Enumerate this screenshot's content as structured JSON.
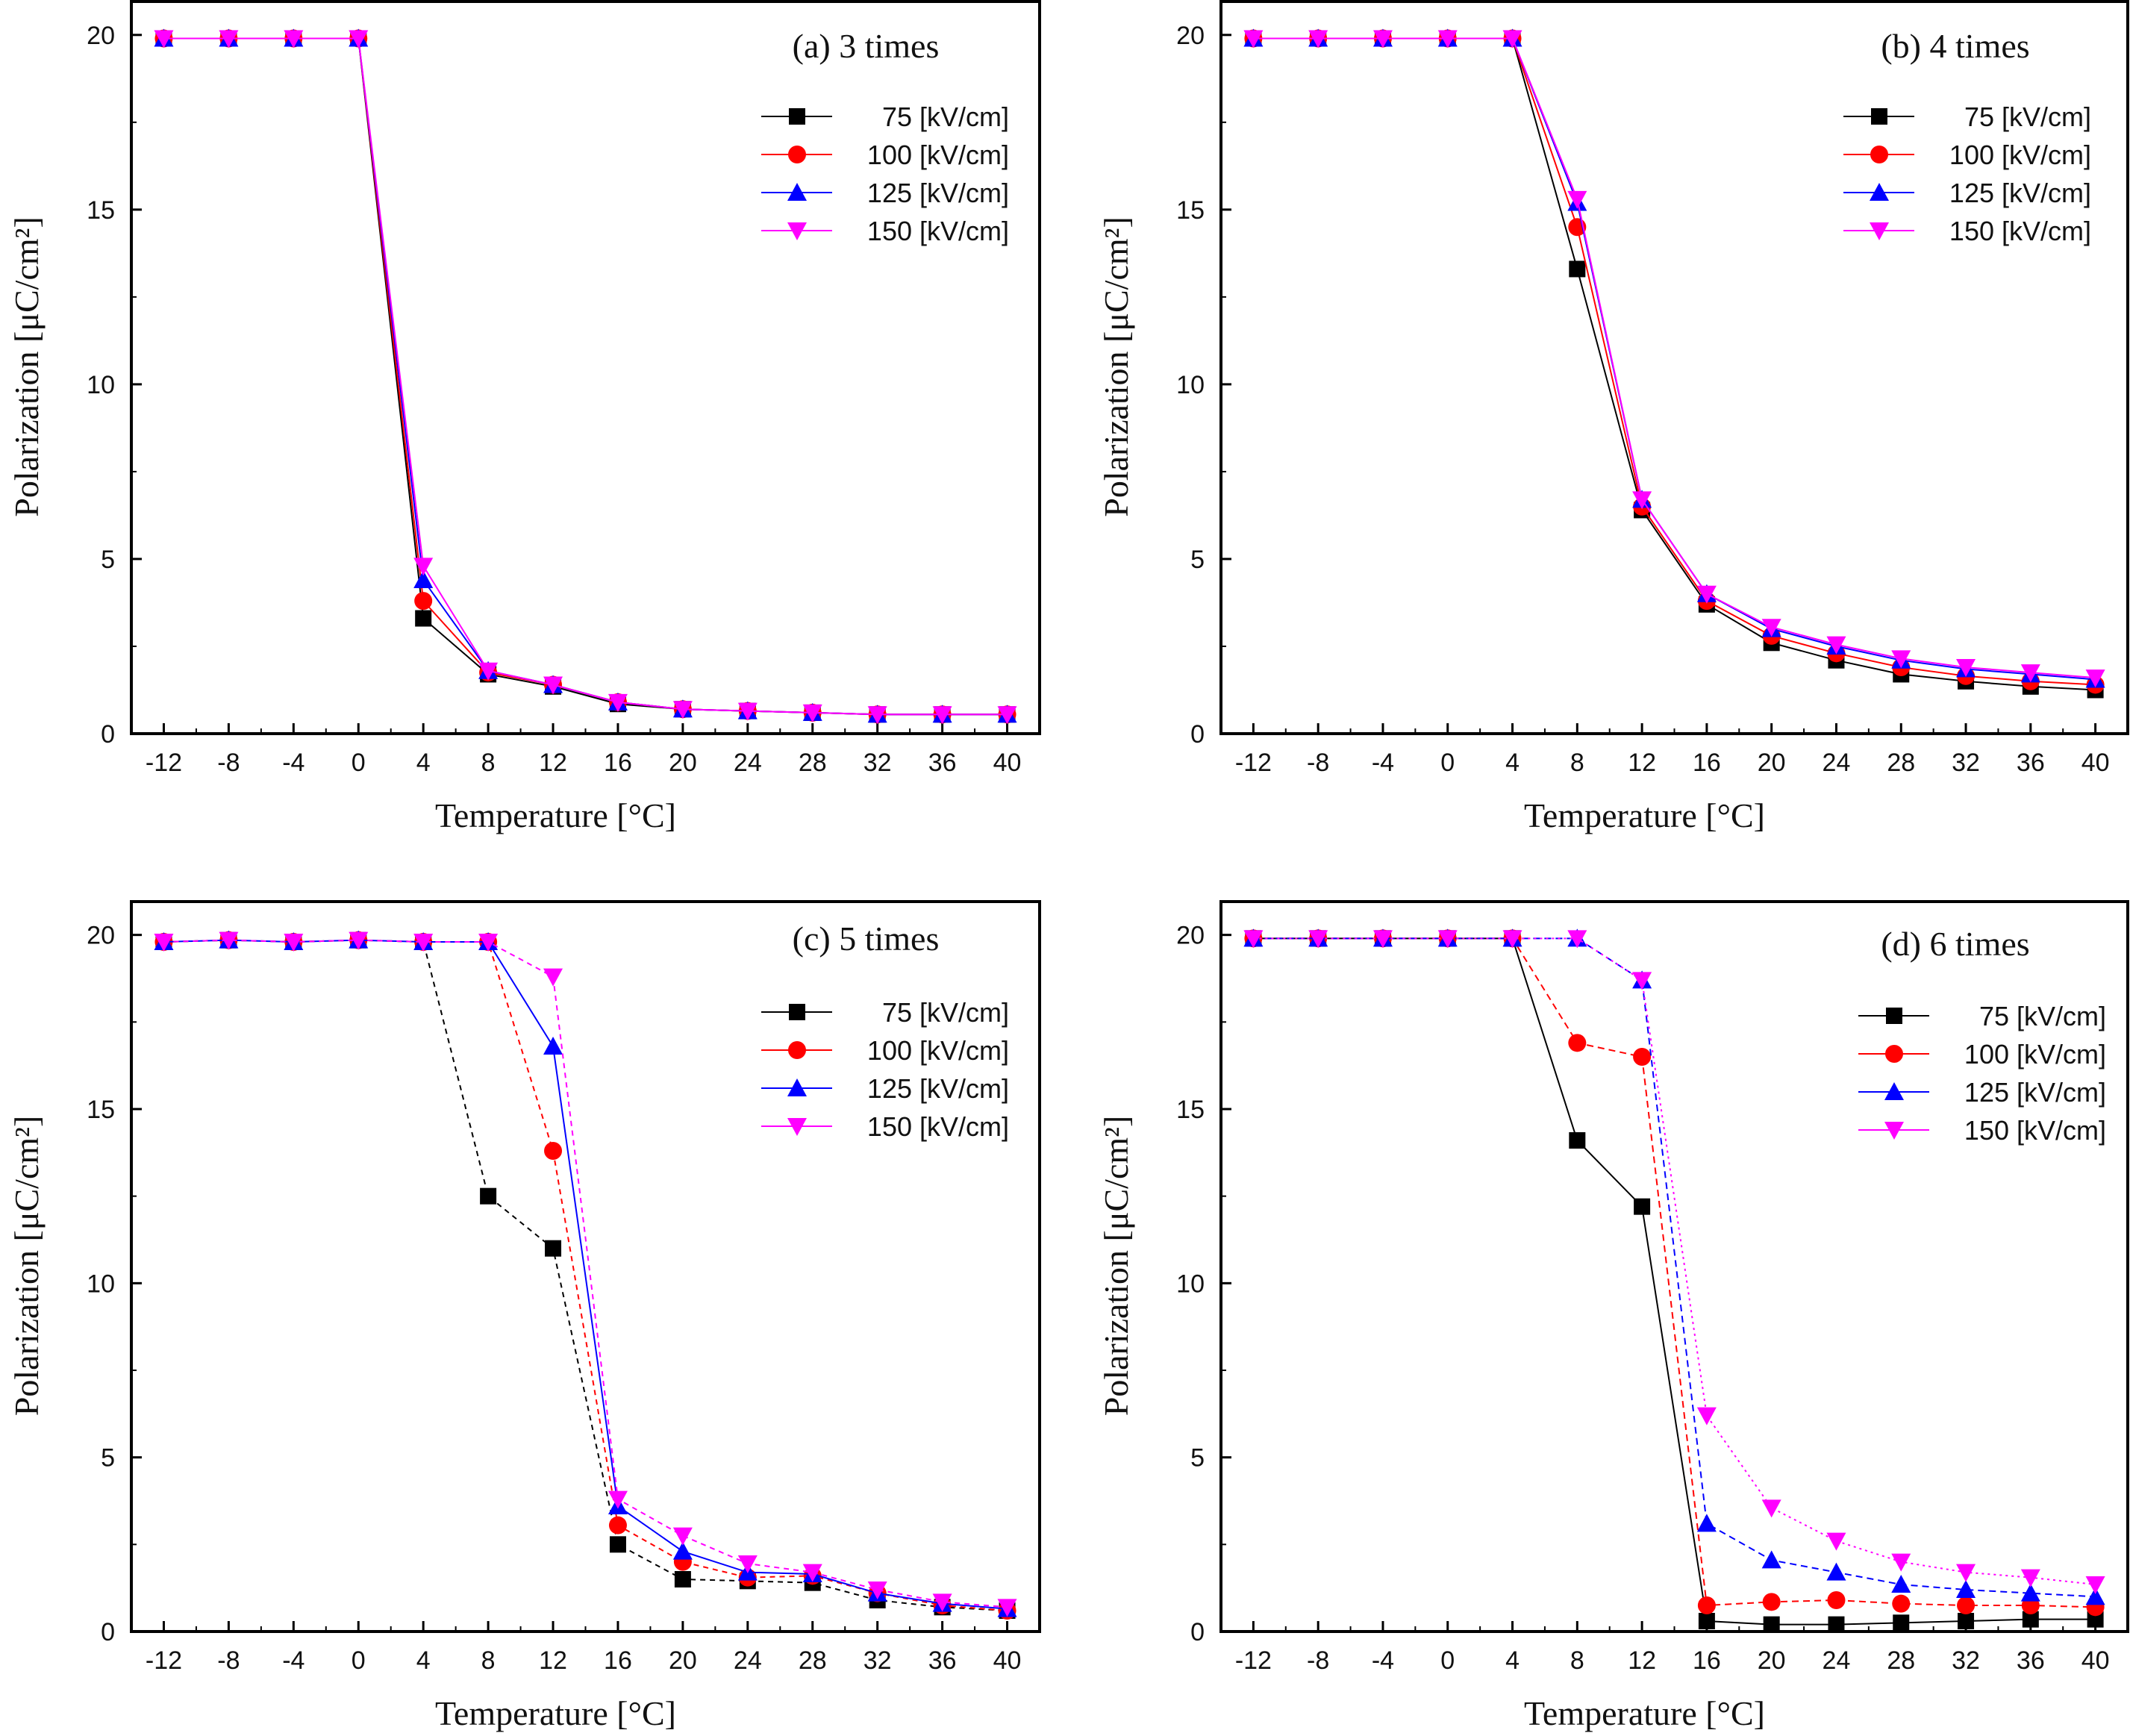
{
  "chart_data": [
    {
      "type": "line",
      "title": "(a) 3 times",
      "xlabel": "Temperature [°C]",
      "ylabel": "Polarization [μC/cm²]",
      "xlim": [
        -14,
        42
      ],
      "ylim": [
        0,
        21
      ],
      "xticks": [
        -12,
        -8,
        -4,
        0,
        4,
        8,
        12,
        16,
        20,
        24,
        28,
        32,
        36,
        40
      ],
      "yticks": [
        0,
        5,
        10,
        15,
        20
      ],
      "x": [
        -12,
        -8,
        -4,
        0,
        4,
        8,
        12,
        16,
        20,
        24,
        28,
        32,
        36,
        40
      ],
      "legend_position": "top-right",
      "grid": false,
      "series": [
        {
          "name": "75 [kV/cm]",
          "color": "#000000",
          "marker": "square",
          "values": [
            19.9,
            19.9,
            19.9,
            19.9,
            3.3,
            1.7,
            1.35,
            0.85,
            0.7,
            0.65,
            0.6,
            0.55,
            0.55,
            0.55
          ]
        },
        {
          "name": "100 [kV/cm]",
          "color": "#ff0000",
          "marker": "circle",
          "values": [
            19.9,
            19.9,
            19.9,
            19.9,
            3.8,
            1.75,
            1.4,
            0.9,
            0.7,
            0.65,
            0.6,
            0.55,
            0.55,
            0.55
          ]
        },
        {
          "name": "125 [kV/cm]",
          "color": "#0000ff",
          "marker": "triangle-up",
          "values": [
            19.9,
            19.9,
            19.9,
            19.9,
            4.4,
            1.8,
            1.4,
            0.9,
            0.7,
            0.65,
            0.6,
            0.55,
            0.55,
            0.55
          ]
        },
        {
          "name": "150 [kV/cm]",
          "color": "#ff00ff",
          "marker": "triangle-down",
          "values": [
            19.9,
            19.9,
            19.9,
            19.9,
            4.8,
            1.8,
            1.4,
            0.9,
            0.7,
            0.65,
            0.6,
            0.55,
            0.55,
            0.55
          ]
        }
      ]
    },
    {
      "type": "line",
      "title": "(b) 4 times",
      "xlabel": "Temperature [°C]",
      "ylabel": "Polarization [μC/cm²]",
      "xlim": [
        -14,
        42
      ],
      "ylim": [
        0,
        21
      ],
      "xticks": [
        -12,
        -8,
        -4,
        0,
        4,
        8,
        12,
        16,
        20,
        24,
        28,
        32,
        36,
        40
      ],
      "yticks": [
        0,
        5,
        10,
        15,
        20
      ],
      "x": [
        -12,
        -8,
        -4,
        0,
        4,
        8,
        12,
        16,
        20,
        24,
        28,
        32,
        36,
        40
      ],
      "legend_position": "top-right",
      "grid": false,
      "series": [
        {
          "name": "75 [kV/cm]",
          "color": "#000000",
          "marker": "square",
          "values": [
            19.9,
            19.9,
            19.9,
            19.9,
            19.9,
            13.3,
            6.4,
            3.7,
            2.6,
            2.1,
            1.7,
            1.5,
            1.35,
            1.25
          ]
        },
        {
          "name": "100 [kV/cm]",
          "color": "#ff0000",
          "marker": "circle",
          "values": [
            19.9,
            19.9,
            19.9,
            19.9,
            19.9,
            14.5,
            6.5,
            3.8,
            2.8,
            2.3,
            1.9,
            1.65,
            1.5,
            1.4
          ]
        },
        {
          "name": "125 [kV/cm]",
          "color": "#0000ff",
          "marker": "triangle-up",
          "values": [
            19.9,
            19.9,
            19.9,
            19.9,
            19.9,
            15.2,
            6.7,
            4.0,
            3.0,
            2.5,
            2.1,
            1.85,
            1.7,
            1.55
          ]
        },
        {
          "name": "150 [kV/cm]",
          "color": "#ff00ff",
          "marker": "triangle-down",
          "values": [
            19.9,
            19.9,
            19.9,
            19.9,
            19.9,
            15.3,
            6.7,
            4.0,
            3.05,
            2.55,
            2.15,
            1.9,
            1.75,
            1.6
          ]
        }
      ]
    },
    {
      "type": "line",
      "title": "(c) 5 times",
      "xlabel": "Temperature [°C]",
      "ylabel": "Polarization [μC/cm²]",
      "xlim": [
        -14,
        42
      ],
      "ylim": [
        0,
        21
      ],
      "xticks": [
        -12,
        -8,
        -4,
        0,
        4,
        8,
        12,
        16,
        20,
        24,
        28,
        32,
        36,
        40
      ],
      "yticks": [
        0,
        5,
        10,
        15,
        20
      ],
      "x": [
        -12,
        -8,
        -4,
        0,
        4,
        8,
        12,
        16,
        20,
        24,
        28,
        32,
        36,
        40
      ],
      "legend_position": "top-right",
      "grid": false,
      "series": [
        {
          "name": "75 [kV/cm]",
          "color": "#000000",
          "marker": "square",
          "values": [
            19.8,
            19.85,
            19.8,
            19.85,
            19.8,
            12.5,
            11.0,
            2.5,
            1.5,
            1.45,
            1.4,
            0.9,
            0.7,
            0.6
          ]
        },
        {
          "name": "100 [kV/cm]",
          "color": "#ff0000",
          "marker": "circle",
          "values": [
            19.8,
            19.85,
            19.8,
            19.85,
            19.8,
            19.8,
            13.8,
            3.05,
            2.0,
            1.55,
            1.6,
            1.1,
            0.75,
            0.6
          ]
        },
        {
          "name": "125 [kV/cm]",
          "color": "#0000ff",
          "marker": "triangle-up",
          "values": [
            19.8,
            19.85,
            19.8,
            19.85,
            19.8,
            19.8,
            16.8,
            3.6,
            2.3,
            1.7,
            1.65,
            1.1,
            0.8,
            0.65
          ]
        },
        {
          "name": "150 [kV/cm]",
          "color": "#ff00ff",
          "marker": "triangle-down",
          "values": [
            19.8,
            19.85,
            19.8,
            19.85,
            19.8,
            19.8,
            18.8,
            3.8,
            2.75,
            1.95,
            1.7,
            1.2,
            0.85,
            0.7
          ]
        }
      ]
    },
    {
      "type": "line",
      "title": "(d) 6 times",
      "xlabel": "Temperature [°C]",
      "ylabel": "Polarization [μC/cm²]",
      "xlim": [
        -14,
        42
      ],
      "ylim": [
        0,
        21
      ],
      "xticks": [
        -12,
        -8,
        -4,
        0,
        4,
        8,
        12,
        16,
        20,
        24,
        28,
        32,
        36,
        40
      ],
      "yticks": [
        0,
        5,
        10,
        15,
        20
      ],
      "x": [
        -12,
        -8,
        -4,
        0,
        4,
        8,
        12,
        16,
        20,
        24,
        28,
        32,
        36,
        40
      ],
      "legend_position": "top-right",
      "grid": false,
      "series": [
        {
          "name": "75 [kV/cm]",
          "color": "#000000",
          "marker": "square",
          "values": [
            19.9,
            19.9,
            19.9,
            19.9,
            19.9,
            14.1,
            12.2,
            0.3,
            0.2,
            0.2,
            0.25,
            0.3,
            0.35,
            0.35
          ]
        },
        {
          "name": "100 [kV/cm]",
          "color": "#ff0000",
          "marker": "circle",
          "values": [
            19.9,
            19.9,
            19.9,
            19.9,
            19.9,
            16.9,
            16.5,
            0.75,
            0.85,
            0.9,
            0.8,
            0.75,
            0.75,
            0.7
          ]
        },
        {
          "name": "125 [kV/cm]",
          "color": "#0000ff",
          "marker": "triangle-up",
          "values": [
            19.9,
            19.9,
            19.9,
            19.9,
            19.9,
            19.9,
            18.7,
            3.1,
            2.05,
            1.7,
            1.35,
            1.2,
            1.1,
            1.0
          ]
        },
        {
          "name": "150 [kV/cm]",
          "color": "#ff00ff",
          "marker": "triangle-down",
          "values": [
            19.9,
            19.9,
            19.9,
            19.9,
            19.9,
            19.9,
            18.7,
            6.2,
            3.55,
            2.6,
            2.0,
            1.7,
            1.55,
            1.35
          ]
        }
      ]
    }
  ]
}
